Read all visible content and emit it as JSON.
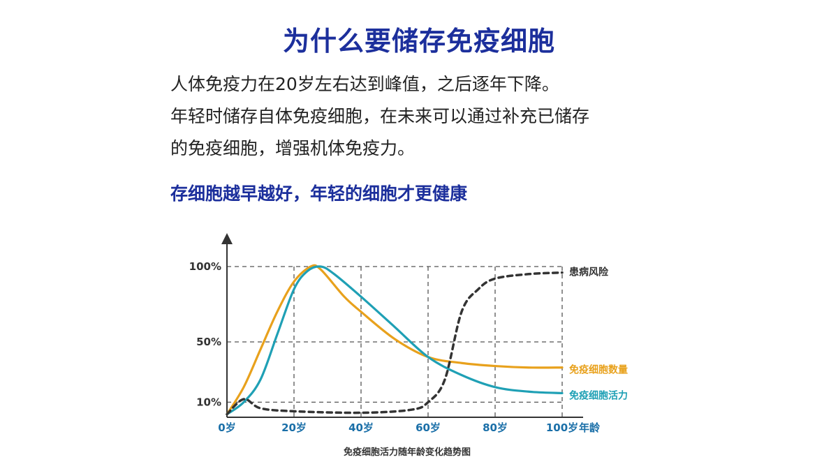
{
  "header": {
    "title": "为什么要储存免疫细胞",
    "intro_lines": [
      "人体免疫力在20岁左右达到峰值，之后逐年下降。",
      "年轻时储存自体免疫细胞，在未来可以通过补充已储存",
      "的免疫细胞，增强机体免疫力。"
    ],
    "tagline": "存细胞越早越好，年轻的细胞才更健康"
  },
  "chart_data": {
    "type": "line",
    "title": "",
    "caption": "免疫细胞活力随年龄变化趋势图",
    "xlabel": "年龄",
    "ylabel": "",
    "xlim": [
      0,
      100
    ],
    "ylim": [
      0,
      100
    ],
    "x_ticks": [
      "0岁",
      "20岁",
      "40岁",
      "60岁",
      "80岁",
      "100岁"
    ],
    "y_ticks": [
      "10%",
      "50%",
      "100%"
    ],
    "grid": true,
    "series": [
      {
        "name": "免疫细胞数量",
        "color": "#e8a11c",
        "style": "solid",
        "x": [
          0,
          5,
          10,
          15,
          20,
          25,
          28,
          35,
          40,
          50,
          60,
          70,
          80,
          90,
          100
        ],
        "y": [
          2,
          20,
          45,
          70,
          90,
          100,
          98,
          80,
          70,
          52,
          40,
          36,
          34,
          33,
          33
        ]
      },
      {
        "name": "免疫细胞活力",
        "color": "#1fa0b5",
        "style": "solid",
        "x": [
          0,
          5,
          10,
          15,
          20,
          24,
          28,
          32,
          40,
          50,
          60,
          70,
          80,
          90,
          100
        ],
        "y": [
          2,
          10,
          25,
          55,
          85,
          97,
          100,
          95,
          80,
          60,
          40,
          28,
          20,
          17,
          16
        ]
      },
      {
        "name": "患病风险",
        "color": "#333333",
        "style": "dashed",
        "x": [
          0,
          5,
          10,
          20,
          40,
          55,
          60,
          65,
          70,
          75,
          80,
          90,
          100
        ],
        "y": [
          2,
          12,
          6,
          4,
          3,
          5,
          10,
          25,
          70,
          85,
          92,
          95,
          96
        ]
      }
    ]
  }
}
